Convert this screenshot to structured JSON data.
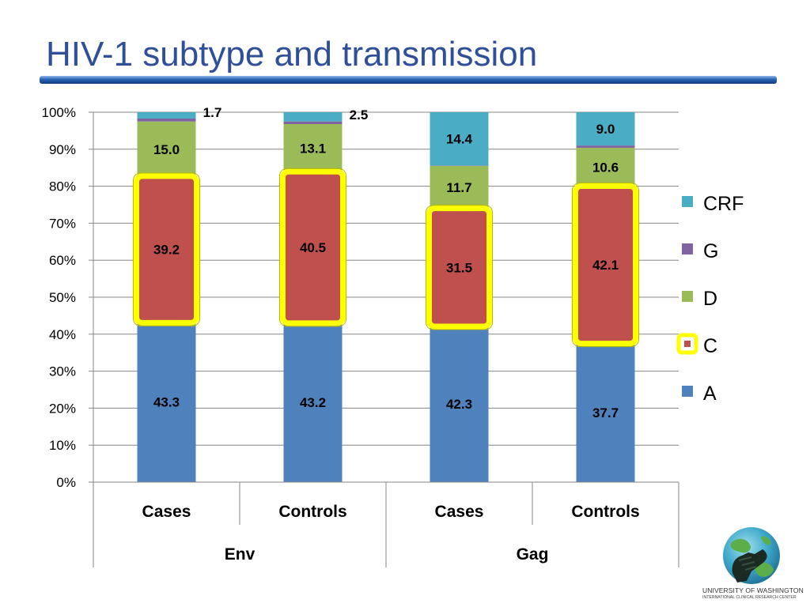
{
  "slide": {
    "title": "HIV-1 subtype and transmission"
  },
  "branding": {
    "institution": "UNIVERSITY OF WASHINGTON",
    "department": "INTERNATIONAL CLINICAL RESEARCH CENTER",
    "logo_icon": "handshake-globe-icon"
  },
  "chart_data": {
    "type": "bar",
    "stacked": true,
    "percent_stacked": true,
    "title": "",
    "xlabel": "",
    "ylabel": "",
    "ylim": [
      0,
      100
    ],
    "yticks": [
      "0%",
      "10%",
      "20%",
      "30%",
      "40%",
      "50%",
      "60%",
      "70%",
      "80%",
      "90%",
      "100%"
    ],
    "grid": true,
    "legend_position": "right",
    "highlighted_series": "C",
    "highlight_color": "#ffff00",
    "groups": [
      {
        "label": "Env",
        "categories": [
          "Cases",
          "Controls"
        ]
      },
      {
        "label": "Gag",
        "categories": [
          "Cases",
          "Controls"
        ]
      }
    ],
    "categories": [
      "Cases",
      "Controls",
      "Cases",
      "Controls"
    ],
    "series": [
      {
        "name": "A",
        "color": "#4f81bd",
        "values": [
          43.3,
          43.2,
          42.3,
          37.7
        ],
        "labels": [
          "43.3",
          "43.2",
          "42.3",
          "37.7"
        ]
      },
      {
        "name": "C",
        "color": "#c0504d",
        "values": [
          39.2,
          40.5,
          31.5,
          42.1
        ],
        "labels": [
          "39.2",
          "40.5",
          "31.5",
          "42.1"
        ]
      },
      {
        "name": "D",
        "color": "#9bbb59",
        "values": [
          15.0,
          13.1,
          11.7,
          10.6
        ],
        "labels": [
          "15.0",
          "13.1",
          "11.7",
          "10.6"
        ]
      },
      {
        "name": "G",
        "color": "#8064a2",
        "values": [
          0.8,
          0.7,
          0.1,
          0.6
        ],
        "labels": [
          "",
          "",
          "",
          ""
        ]
      },
      {
        "name": "CRF",
        "color": "#4bacc6",
        "values": [
          1.7,
          2.5,
          14.4,
          9.0
        ],
        "labels": [
          "1.7",
          "2.5",
          "14.4",
          "9.0"
        ]
      }
    ],
    "legend_order": [
      "CRF",
      "G",
      "D",
      "C",
      "A"
    ]
  }
}
